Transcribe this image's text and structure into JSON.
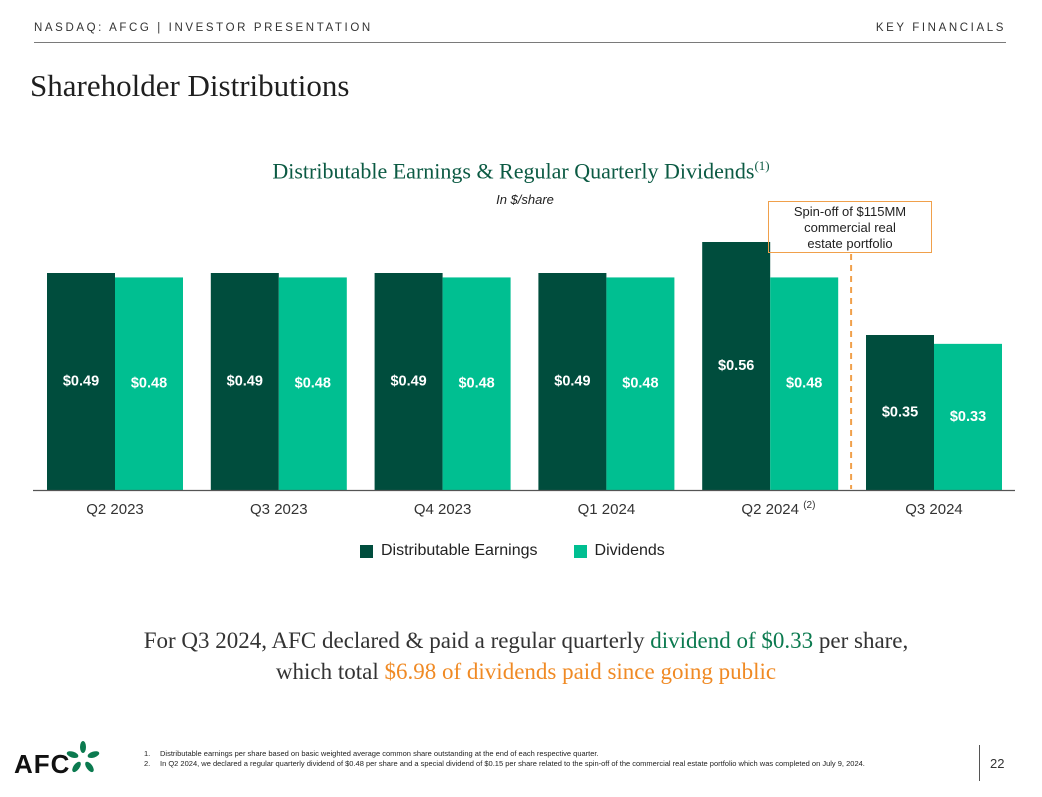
{
  "header": {
    "left": "NASDAQ: AFCG | INVESTOR PRESENTATION",
    "right": "KEY FINANCIALS"
  },
  "page_title": "Shareholder Distributions",
  "chart_data": {
    "type": "bar",
    "title": "Distributable Earnings & Regular Quarterly Dividends",
    "title_sup": "(1)",
    "subtitle": "In $/share",
    "categories": [
      "Q2 2023",
      "Q3 2023",
      "Q4 2023",
      "Q1 2024",
      "Q2 2024",
      "Q3 2024"
    ],
    "category_sup": [
      "",
      "",
      "",
      "",
      "(2)",
      ""
    ],
    "series": [
      {
        "name": "Distributable Earnings",
        "color": "#004d3d",
        "values": [
          0.49,
          0.49,
          0.49,
          0.49,
          0.56,
          0.35
        ],
        "labels": [
          "$0.49",
          "$0.49",
          "$0.49",
          "$0.49",
          "$0.56",
          "$0.35"
        ]
      },
      {
        "name": "Dividends",
        "color": "#00bf91",
        "values": [
          0.48,
          0.48,
          0.48,
          0.48,
          0.48,
          0.33
        ],
        "labels": [
          "$0.48",
          "$0.48",
          "$0.48",
          "$0.48",
          "$0.48",
          "$0.33"
        ]
      }
    ],
    "ylim": [
      0,
      0.7
    ],
    "grid": false,
    "legend": "bottom",
    "annotation": {
      "text_lines": [
        "Spin-off of $115MM",
        "commercial real",
        "estate portfolio"
      ],
      "after_category": "Q2 2024",
      "color": "#f0a04b"
    }
  },
  "headline": {
    "line1_pre": "For Q3 2024, AFC declared & paid a regular quarterly ",
    "line1_highlight": "dividend of $0.33",
    "line1_post": " per share,",
    "line2_pre": "which total ",
    "line2_highlight": "$6.98 of dividends paid since going public"
  },
  "footnotes": [
    {
      "n": "1.",
      "text": "Distributable earnings per share based on basic weighted average common share outstanding at the end of each respective quarter."
    },
    {
      "n": "2.",
      "text": "In Q2 2024, we declared a regular quarterly dividend of $0.48 per share and a special dividend of $0.15 per share related to the spin-off of the commercial real estate portfolio which was completed on July 9, 2024."
    }
  ],
  "logo_text": "AFC",
  "page_number": "22"
}
